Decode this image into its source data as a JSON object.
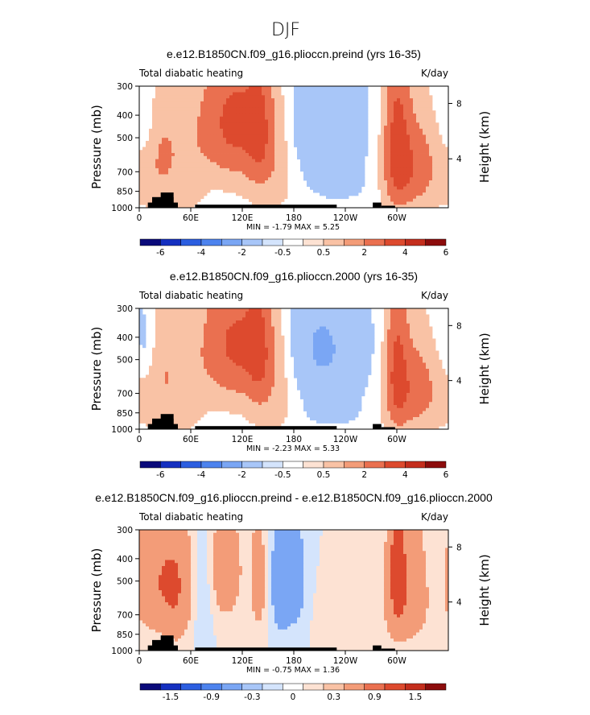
{
  "figure_title": "DJF",
  "colors": {
    "levels": [
      "#0a0a7a",
      "#1530c0",
      "#2c5ee0",
      "#4d83ee",
      "#7aa6f4",
      "#a8c6f8",
      "#d4e4fc",
      "#ffffff",
      "#fde2d3",
      "#f9c2a5",
      "#f39c78",
      "#ea7050",
      "#dd4a2e",
      "#c42e1d",
      "#8c0c0c"
    ]
  },
  "chart_data": [
    {
      "type": "heatmap",
      "title": "e.e12.B1850CN.f09_g16.plioccn.preind (yrs 16-35)",
      "left_label": "Total diabatic heating",
      "units": "K/day",
      "ylabel": "Pressure  (mb)",
      "ylabel_right": "Height  (km)",
      "yticks": [
        "300",
        "400",
        "500",
        "700",
        "850",
        "1000"
      ],
      "yticks_right": [
        "8",
        "4"
      ],
      "xticks": [
        "0",
        "60E",
        "120E",
        "180",
        "120W",
        "60W"
      ],
      "xlim": [
        0,
        360
      ],
      "ylim": [
        1000,
        300
      ],
      "stats": {
        "min_label": "MIN =",
        "min": "-1.79",
        "max_label": "MAX =",
        "max": "5.25"
      },
      "colorbar_labels": [
        "-6",
        "-4",
        "-2",
        "-0.5",
        "0.5",
        "2",
        "4",
        "6"
      ],
      "colorbar_values": [
        -6,
        -4,
        -2,
        -0.5,
        0.5,
        2,
        4,
        6
      ],
      "features": [
        {
          "lon": 110,
          "p": 430,
          "sx": 28,
          "sp": 200,
          "amp": 4.6
        },
        {
          "lon": 140,
          "p": 450,
          "sx": 10,
          "sp": 220,
          "amp": 2.2
        },
        {
          "lon": 155,
          "p": 600,
          "sx": 20,
          "sp": 260,
          "amp": 1.6
        },
        {
          "lon": 210,
          "p": 450,
          "sx": 40,
          "sp": 200,
          "amp": -1.8
        },
        {
          "lon": 235,
          "p": 800,
          "sx": 30,
          "sp": 120,
          "amp": -0.6
        },
        {
          "lon": 300,
          "p": 500,
          "sx": 10,
          "sp": 300,
          "amp": 3.8
        },
        {
          "lon": 315,
          "p": 700,
          "sx": 20,
          "sp": 200,
          "amp": 2.6
        },
        {
          "lon": 330,
          "p": 550,
          "sx": 25,
          "sp": 250,
          "amp": 1.3
        },
        {
          "lon": 25,
          "p": 600,
          "sx": 18,
          "sp": 240,
          "amp": 2.2
        },
        {
          "lon": 8,
          "p": 450,
          "sx": 10,
          "sp": 150,
          "amp": -1.2
        },
        {
          "lon": 60,
          "p": 700,
          "sx": 14,
          "sp": 250,
          "amp": 0.8
        },
        {
          "lon": 350,
          "p": 400,
          "sx": 15,
          "sp": 200,
          "amp": -0.8
        }
      ]
    },
    {
      "type": "heatmap",
      "title": "e.e12.B1850CN.f09_g16.plioccn.2000 (yrs 16-35)",
      "left_label": "Total diabatic heating",
      "units": "K/day",
      "ylabel": "Pressure  (mb)",
      "ylabel_right": "Height  (km)",
      "yticks": [
        "300",
        "400",
        "500",
        "700",
        "850",
        "1000"
      ],
      "yticks_right": [
        "8",
        "4"
      ],
      "xticks": [
        "0",
        "60E",
        "120E",
        "180",
        "120W",
        "60W"
      ],
      "xlim": [
        0,
        360
      ],
      "ylim": [
        1000,
        300
      ],
      "stats": {
        "min_label": "MIN =",
        "min": "-2.23",
        "max_label": "MAX =",
        "max": "5.33"
      },
      "colorbar_labels": [
        "-6",
        "-4",
        "-2",
        "-0.5",
        "0.5",
        "2",
        "4",
        "6"
      ],
      "colorbar_values": [
        -6,
        -4,
        -2,
        -0.5,
        0.5,
        2,
        4,
        6
      ],
      "features": [
        {
          "lon": 112,
          "p": 430,
          "sx": 28,
          "sp": 200,
          "amp": 4.4
        },
        {
          "lon": 140,
          "p": 450,
          "sx": 10,
          "sp": 220,
          "amp": 2.3
        },
        {
          "lon": 158,
          "p": 600,
          "sx": 20,
          "sp": 260,
          "amp": 1.5
        },
        {
          "lon": 210,
          "p": 450,
          "sx": 40,
          "sp": 220,
          "amp": -2.2
        },
        {
          "lon": 225,
          "p": 830,
          "sx": 20,
          "sp": 80,
          "amp": -1.1
        },
        {
          "lon": 300,
          "p": 520,
          "sx": 9,
          "sp": 300,
          "amp": 3.6
        },
        {
          "lon": 318,
          "p": 700,
          "sx": 20,
          "sp": 200,
          "amp": 2.4
        },
        {
          "lon": 335,
          "p": 550,
          "sx": 25,
          "sp": 250,
          "amp": 1.2
        },
        {
          "lon": 28,
          "p": 600,
          "sx": 18,
          "sp": 240,
          "amp": 1.9
        },
        {
          "lon": 8,
          "p": 450,
          "sx": 10,
          "sp": 150,
          "amp": -1.3
        },
        {
          "lon": 60,
          "p": 700,
          "sx": 14,
          "sp": 250,
          "amp": 0.7
        },
        {
          "lon": 350,
          "p": 400,
          "sx": 15,
          "sp": 200,
          "amp": -0.9
        }
      ]
    },
    {
      "type": "heatmap",
      "title": "e.e12.B1850CN.f09_g16.plioccn.preind - e.e12.B1850CN.f09_g16.plioccn.2000",
      "left_label": "Total diabatic heating",
      "units": "K/day",
      "ylabel": "Pressure  (mb)",
      "ylabel_right": "Height  (km)",
      "yticks": [
        "300",
        "400",
        "500",
        "700",
        "850",
        "1000"
      ],
      "yticks_right": [
        "8",
        "4"
      ],
      "xticks": [
        "0",
        "60E",
        "120E",
        "180",
        "120W",
        "60W"
      ],
      "xlim": [
        0,
        360
      ],
      "ylim": [
        1000,
        300
      ],
      "stats": {
        "min_label": "MIN =",
        "min": "-0.75",
        "max_label": "MAX =",
        "max": "1.36"
      },
      "colorbar_labels": [
        "-1.5",
        "-0.9",
        "-0.3",
        "0",
        "0.3",
        "0.9",
        "1.5"
      ],
      "colorbar_values": [
        -1.5,
        -0.9,
        -0.3,
        0,
        0.3,
        0.9,
        1.5
      ],
      "features": [
        {
          "lon": 20,
          "p": 500,
          "sx": 20,
          "sp": 220,
          "amp": 0.8
        },
        {
          "lon": 45,
          "p": 550,
          "sx": 12,
          "sp": 250,
          "amp": 0.6
        },
        {
          "lon": 100,
          "p": 450,
          "sx": 15,
          "sp": 200,
          "amp": 0.6
        },
        {
          "lon": 140,
          "p": 500,
          "sx": 8,
          "sp": 250,
          "amp": 0.5
        },
        {
          "lon": 165,
          "p": 500,
          "sx": 10,
          "sp": 250,
          "amp": -0.65
        },
        {
          "lon": 185,
          "p": 500,
          "sx": 8,
          "sp": 250,
          "amp": -0.4
        },
        {
          "lon": 75,
          "p": 600,
          "sx": 8,
          "sp": 250,
          "amp": -0.35
        },
        {
          "lon": 300,
          "p": 450,
          "sx": 8,
          "sp": 250,
          "amp": 1.1
        },
        {
          "lon": 320,
          "p": 550,
          "sx": 15,
          "sp": 250,
          "amp": 0.6
        },
        {
          "lon": 255,
          "p": 750,
          "sx": 30,
          "sp": 150,
          "amp": 0.2
        },
        {
          "lon": 345,
          "p": 450,
          "sx": 10,
          "sp": 200,
          "amp": -0.2
        }
      ]
    }
  ]
}
